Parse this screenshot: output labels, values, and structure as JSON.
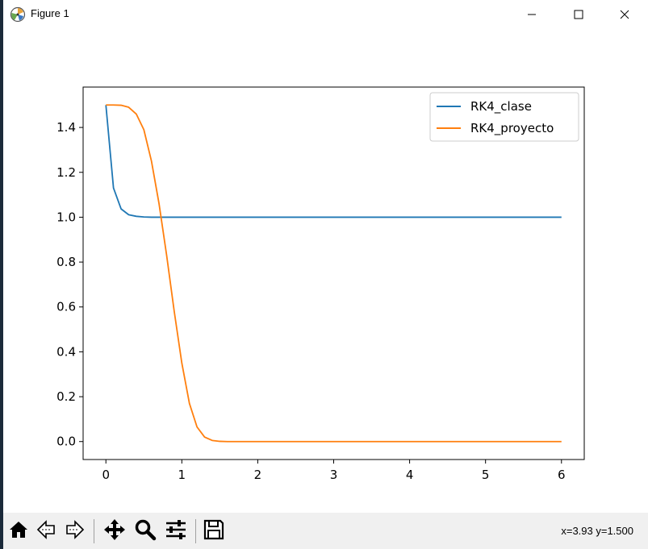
{
  "window": {
    "title": "Figure 1",
    "icons": {
      "app": "matplotlib-figure-icon",
      "minimize": "minimize-icon",
      "maximize": "maximize-icon",
      "close": "close-icon"
    }
  },
  "toolbar": {
    "buttons": [
      {
        "name": "home-button",
        "icon": "home-icon"
      },
      {
        "name": "back-button",
        "icon": "back-arrow-icon"
      },
      {
        "name": "forward-button",
        "icon": "forward-arrow-icon"
      },
      {
        "name": "pan-button",
        "icon": "move-arrows-icon"
      },
      {
        "name": "zoom-button",
        "icon": "magnifier-icon"
      },
      {
        "name": "configure-subplots-button",
        "icon": "sliders-icon"
      },
      {
        "name": "save-button",
        "icon": "floppy-disk-icon"
      }
    ],
    "coordinates": "x=3.93 y=1.500"
  },
  "chart_data": {
    "type": "line",
    "xlim": [
      -0.3,
      6.3
    ],
    "ylim": [
      -0.08,
      1.58
    ],
    "xticks": [
      0,
      1,
      2,
      3,
      4,
      5,
      6
    ],
    "yticks": [
      0.0,
      0.2,
      0.4,
      0.6,
      0.8,
      1.0,
      1.2,
      1.4
    ],
    "xtick_labels": [
      "0",
      "1",
      "2",
      "3",
      "4",
      "5",
      "6"
    ],
    "ytick_labels": [
      "0.0",
      "0.2",
      "0.4",
      "0.6",
      "0.8",
      "1.0",
      "1.2",
      "1.4"
    ],
    "legend_position": "top-right",
    "grid": false,
    "series": [
      {
        "name": "RK4_clase",
        "color": "#1f77b4",
        "x": [
          0.0,
          0.1,
          0.2,
          0.3,
          0.4,
          0.5,
          0.6,
          0.8,
          1.0,
          1.5,
          2.0,
          3.0,
          4.0,
          5.0,
          6.0
        ],
        "y": [
          1.5,
          1.13,
          1.037,
          1.011,
          1.004,
          1.001,
          1.0,
          1.0,
          1.0,
          1.0,
          1.0,
          1.0,
          1.0,
          1.0,
          1.0
        ]
      },
      {
        "name": "RK4_proyecto",
        "color": "#ff7f0e",
        "x": [
          0.0,
          0.1,
          0.2,
          0.3,
          0.4,
          0.5,
          0.6,
          0.7,
          0.8,
          0.9,
          1.0,
          1.1,
          1.2,
          1.3,
          1.4,
          1.5,
          1.6,
          2.0,
          3.0,
          4.0,
          5.0,
          6.0
        ],
        "y": [
          1.5,
          1.5,
          1.499,
          1.49,
          1.46,
          1.39,
          1.25,
          1.06,
          0.83,
          0.58,
          0.35,
          0.17,
          0.065,
          0.02,
          0.005,
          0.001,
          0.0,
          0.0,
          0.0,
          0.0,
          0.0,
          0.0
        ]
      }
    ]
  }
}
